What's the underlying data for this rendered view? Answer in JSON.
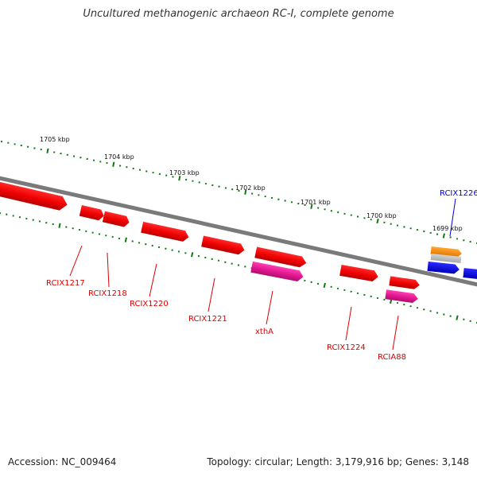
{
  "title": "Uncultured methanogenic archaeon RC-I, complete genome",
  "footer": {
    "accession": "Accession: NC_009464",
    "summary": "Topology: circular; Length: 3,179,916 bp; Genes: 3,148"
  },
  "colors": {
    "backbone": "#7a7a7a",
    "tick": "#127812",
    "gene_red": "#ff0000",
    "gene_magenta": "#e0168e",
    "gene_orange": "#ff8c00",
    "gene_gray": "#b8b8b8",
    "gene_blue": "#0000ee",
    "label_red": "#dd0000",
    "label_blue": "#0000cc"
  },
  "scale_labels": [
    "1705 kbp",
    "1704 kbp",
    "1703 kbp",
    "1702 kbp",
    "1701 kbp",
    "1700 kbp",
    "1699 kbp"
  ],
  "genes": [
    {
      "label": "",
      "color": "red"
    },
    {
      "label": "RCIX1217",
      "color": "red"
    },
    {
      "label": "RCIX1218",
      "color": "red"
    },
    {
      "label": "RCIX1220",
      "color": "red"
    },
    {
      "label": "RCIX1221",
      "color": "red"
    },
    {
      "label": "xthA",
      "color": "magenta"
    },
    {
      "label": "",
      "color": "red"
    },
    {
      "label": "RCIX1224",
      "color": "red"
    },
    {
      "label": "RCIA88",
      "color": "magenta"
    },
    {
      "label": "",
      "color": "red"
    },
    {
      "label": "RCIX1226",
      "color": "orange"
    },
    {
      "label": "",
      "color": "gray"
    },
    {
      "label": "",
      "color": "blue"
    },
    {
      "label": "",
      "color": "blue"
    }
  ]
}
